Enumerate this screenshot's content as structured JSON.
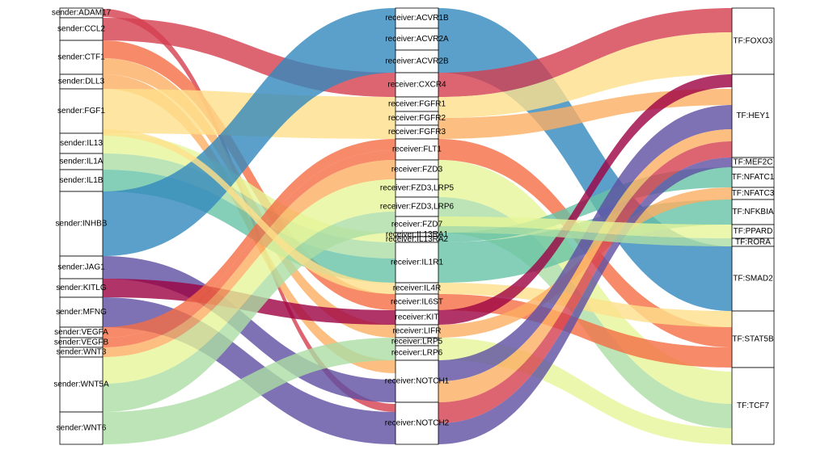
{
  "senders": [
    "sender:ADAM17",
    "sender:CCL2",
    "sender:CTF1",
    "sender:DLL3",
    "sender:FGF1",
    "sender:IL13",
    "sender:IL1A",
    "sender:IL1B",
    "sender:INHBB",
    "sender:JAG1",
    "sender:KITLG",
    "sender:MFNG",
    "sender:VEGFA",
    "sender:VEGFB",
    "sender:WNT3",
    "sender:WNT5A",
    "sender:WNT6"
  ],
  "receivers": [
    "receiver:ACVR1B",
    "receiver:ACVR2A",
    "receiver:ACVR2B",
    "receiver:CXCR4",
    "receiver:FGFR1",
    "receiver:FGFR2",
    "receiver:FGFR3",
    "receiver:FLT1",
    "receiver:FZD3",
    "receiver:FZD3,LRP5",
    "receiver:FZD3,LRP6",
    "receiver:FZD7",
    "receiver:IL13RA1",
    "receiver:IL13RA2",
    "receiver:IL1R1",
    "receiver:IL4R",
    "receiver:IL6ST",
    "receiver:KIT",
    "receiver:LIFR",
    "receiver:LRP5",
    "receiver:LRP6",
    "receiver:NOTCH1",
    "receiver:NOTCH2"
  ],
  "tfs": [
    "TF:FOXO3",
    "TF:HEY1",
    "TF:MEF2C",
    "TF:NFATC1",
    "TF:NFATC3",
    "TF:NFKBIA",
    "TF:PPARD",
    "TF:RORA",
    "TF:SMAD2",
    "TF:STAT5B",
    "TF:TCF7"
  ]
}
